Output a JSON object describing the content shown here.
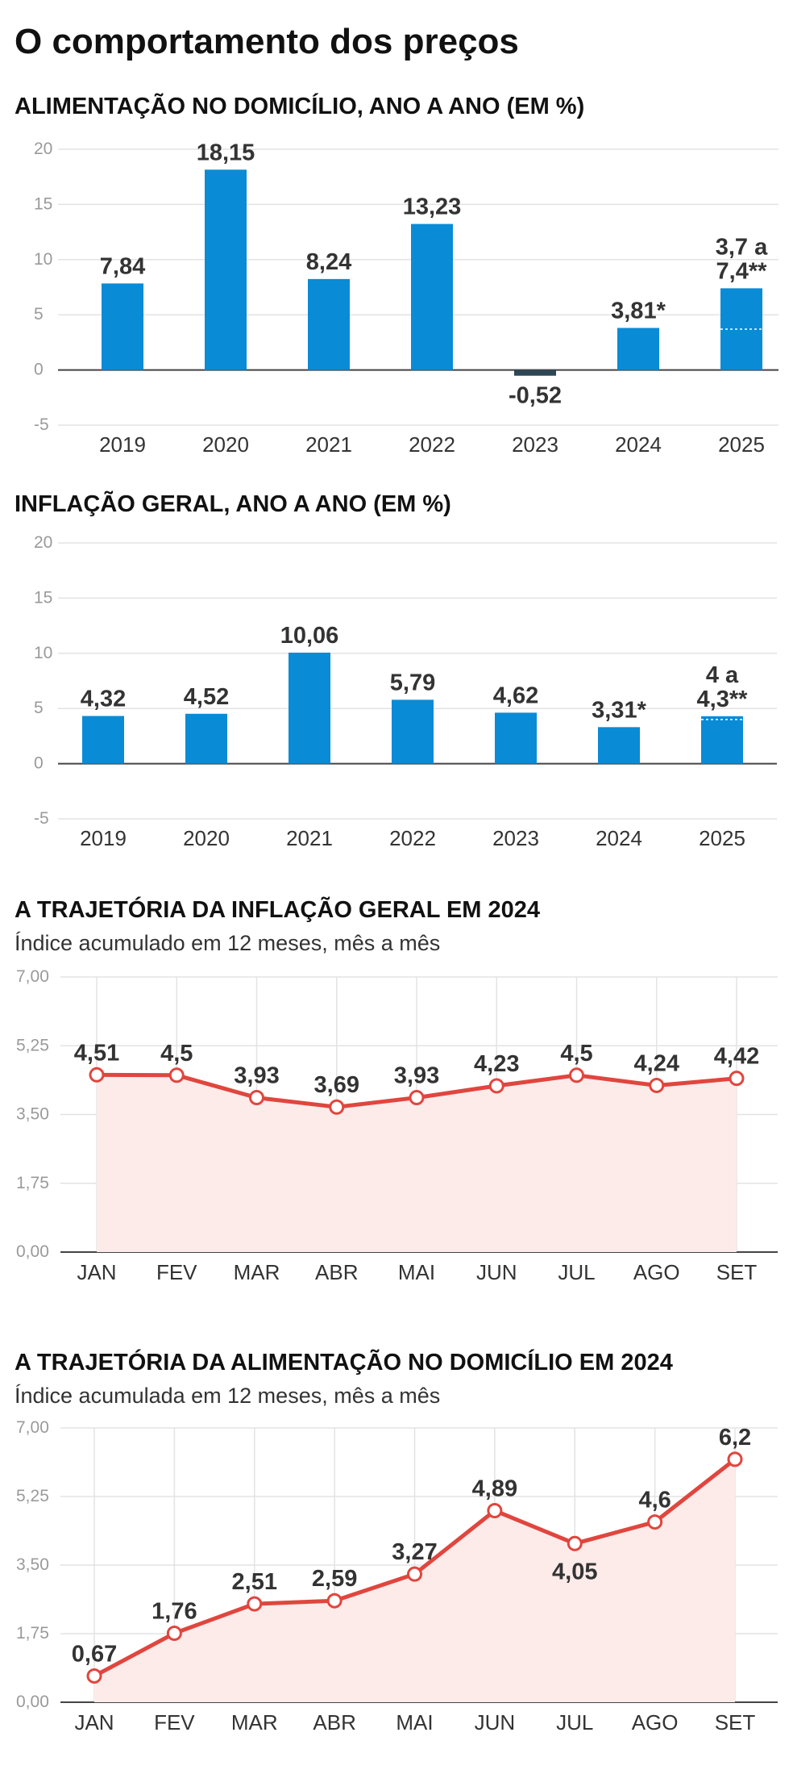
{
  "page": {
    "title": "O comportamento dos preços"
  },
  "chart_data": [
    {
      "type": "bar",
      "title": "ALIMENTAÇÃO NO DOMICÍLIO, ANO A ANO (EM %)",
      "categories": [
        "2019",
        "2020",
        "2021",
        "2022",
        "2023",
        "2024",
        "2025"
      ],
      "values": [
        7.84,
        18.15,
        8.24,
        13.23,
        -0.52,
        3.81,
        7.4
      ],
      "range_low": [
        null,
        null,
        null,
        null,
        null,
        null,
        3.7
      ],
      "data_labels": [
        [
          "7,84"
        ],
        [
          "18,15"
        ],
        [
          "8,24"
        ],
        [
          "13,23"
        ],
        [
          "-0,52"
        ],
        [
          "3,81*"
        ],
        [
          "3,7 a",
          "7,4**"
        ]
      ],
      "ylim": [
        -5,
        20
      ],
      "yticks": [
        -5,
        0,
        5,
        10,
        15,
        20
      ],
      "ytick_labels": [
        "-5",
        "0",
        "5",
        "10",
        "15",
        "20"
      ],
      "colors": {
        "bar": "#0a8bd6",
        "negative_bar": "#2d4754"
      },
      "grid": true
    },
    {
      "type": "bar",
      "title": "INFLAÇÃO GERAL, ANO A ANO (EM %)",
      "categories": [
        "2019",
        "2020",
        "2021",
        "2022",
        "2023",
        "2024",
        "2025"
      ],
      "values": [
        4.32,
        4.52,
        10.06,
        5.79,
        4.62,
        3.31,
        4.3
      ],
      "range_low": [
        null,
        null,
        null,
        null,
        null,
        null,
        4
      ],
      "data_labels": [
        [
          "4,32"
        ],
        [
          "4,52"
        ],
        [
          "10,06"
        ],
        [
          "5,79"
        ],
        [
          "4,62"
        ],
        [
          "3,31*"
        ],
        [
          "4 a",
          "4,3**"
        ]
      ],
      "ylim": [
        -5,
        20
      ],
      "yticks": [
        -5,
        0,
        5,
        10,
        15,
        20
      ],
      "ytick_labels": [
        "-5",
        "0",
        "5",
        "10",
        "15",
        "20"
      ],
      "colors": {
        "bar": "#0a8bd6",
        "negative_bar": "#2d4754"
      },
      "grid": true
    },
    {
      "type": "area",
      "title": "A TRAJETÓRIA DA INFLAÇÃO GERAL EM 2024",
      "subtitle": "Índice acumulado em 12 meses, mês a mês",
      "categories": [
        "JAN",
        "FEV",
        "MAR",
        "ABR",
        "MAI",
        "JUN",
        "JUL",
        "AGO",
        "SET"
      ],
      "values": [
        4.51,
        4.5,
        3.93,
        3.69,
        3.93,
        4.23,
        4.5,
        4.24,
        4.42
      ],
      "data_labels": [
        "4,51",
        "4,5",
        "3,93",
        "3,69",
        "3,93",
        "4,23",
        "4,5",
        "4,24",
        "4,42"
      ],
      "label_positions": [
        "above",
        "above",
        "above",
        "above",
        "above",
        "above",
        "above",
        "above",
        "above"
      ],
      "ylim": [
        0,
        7
      ],
      "yticks": [
        0,
        1.75,
        3.5,
        5.25,
        7
      ],
      "ytick_labels": [
        "0,00",
        "1,75",
        "3,50",
        "5,25",
        "7,00"
      ],
      "colors": {
        "line": "#e0463e",
        "fill": "#fdebea"
      },
      "grid": true
    },
    {
      "type": "area",
      "title": "A TRAJETÓRIA DA ALIMENTAÇÃO NO DOMICÍLIO EM 2024",
      "subtitle": "Índice acumulada em 12 meses, mês a mês",
      "categories": [
        "JAN",
        "FEV",
        "MAR",
        "ABR",
        "MAI",
        "JUN",
        "JUL",
        "AGO",
        "SET"
      ],
      "values": [
        0.67,
        1.76,
        2.51,
        2.59,
        3.27,
        4.89,
        4.05,
        4.6,
        6.2
      ],
      "data_labels": [
        "0,67",
        "1,76",
        "2,51",
        "2,59",
        "3,27",
        "4,89",
        "4,05",
        "4,6",
        "6,2"
      ],
      "label_positions": [
        "above",
        "above",
        "above",
        "above",
        "above",
        "above",
        "below",
        "above",
        "above"
      ],
      "ylim": [
        0,
        7
      ],
      "yticks": [
        0,
        1.75,
        3.5,
        5.25,
        7
      ],
      "ytick_labels": [
        "0,00",
        "1,75",
        "3,50",
        "5,25",
        "7,00"
      ],
      "colors": {
        "line": "#e0463e",
        "fill": "#fdebea"
      },
      "grid": true
    }
  ]
}
